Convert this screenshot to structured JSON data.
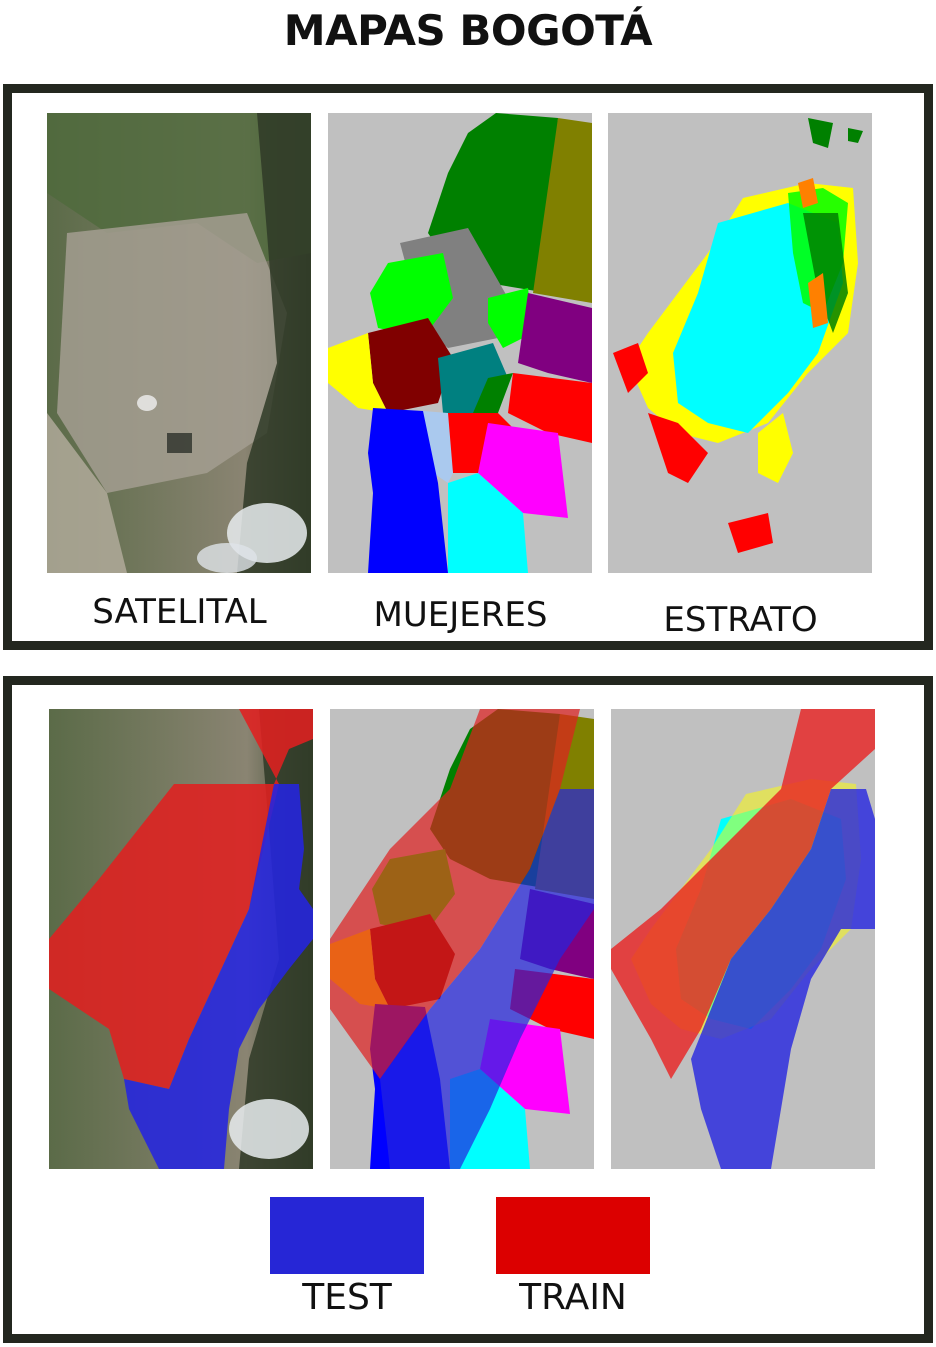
{
  "title": "MAPAS BOGOTÁ",
  "top_panels": [
    {
      "caption": "SATELITAL",
      "content": "satellite-image"
    },
    {
      "caption": "MUEJERES",
      "content": "women-choropleth"
    },
    {
      "caption": "ESTRATO",
      "content": "stratum-map"
    }
  ],
  "bottom_panels": [
    {
      "content": "satellite-train-test-overlay"
    },
    {
      "content": "women-train-test-overlay"
    },
    {
      "content": "stratum-train-test-overlay"
    }
  ],
  "legend": {
    "test": {
      "label": "TEST",
      "color": "#2626d6"
    },
    "train": {
      "label": "TRAIN",
      "color": "#dc0000"
    }
  },
  "colors": {
    "map_background": "#c0c0c0",
    "frame": "#23271f"
  }
}
